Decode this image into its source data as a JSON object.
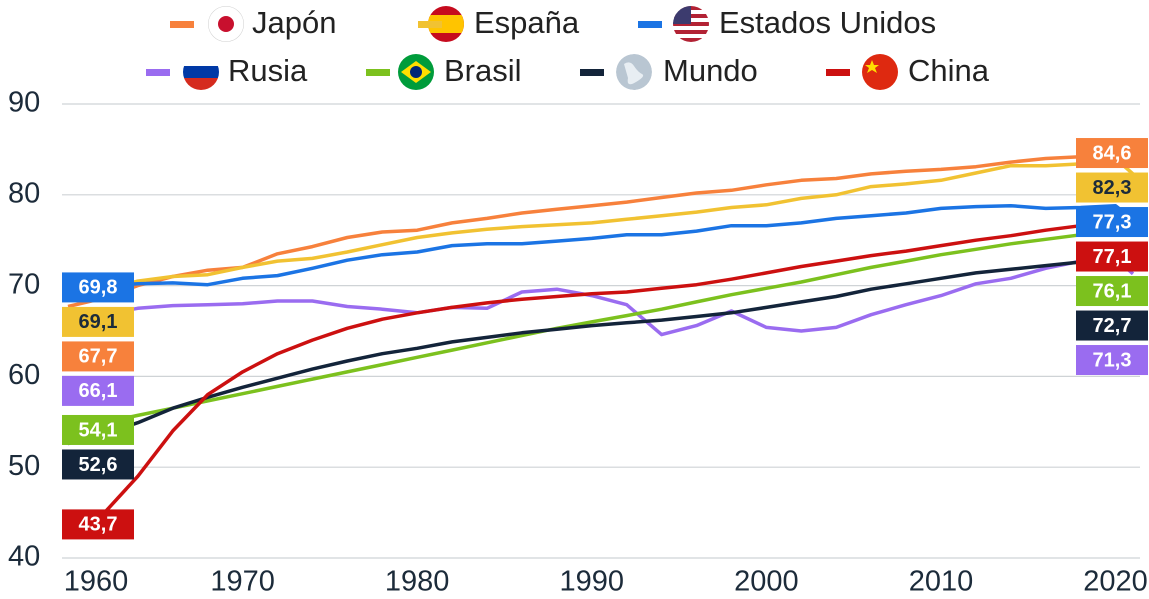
{
  "chart_data": {
    "type": "line",
    "x": [
      1960,
      1962,
      1964,
      1966,
      1968,
      1970,
      1972,
      1974,
      1976,
      1978,
      1980,
      1982,
      1984,
      1986,
      1988,
      1990,
      1992,
      1994,
      1996,
      1998,
      2000,
      2002,
      2004,
      2006,
      2008,
      2010,
      2012,
      2014,
      2016,
      2018,
      2020,
      2021
    ],
    "xlim": [
      1960,
      2021
    ],
    "xticks": [
      1960,
      1970,
      1980,
      1990,
      2000,
      2010,
      2020
    ],
    "ylim": [
      40,
      92
    ],
    "yticks": [
      40,
      50,
      60,
      70,
      80,
      90
    ],
    "grid": true,
    "series": [
      {
        "name": "Japón",
        "color": "#f7813c",
        "values": [
          67.7,
          68.6,
          70.0,
          71.0,
          71.7,
          72.0,
          73.5,
          74.3,
          75.3,
          75.9,
          76.1,
          76.9,
          77.4,
          78.0,
          78.4,
          78.8,
          79.2,
          79.7,
          80.2,
          80.5,
          81.1,
          81.6,
          81.8,
          82.3,
          82.6,
          82.8,
          83.1,
          83.6,
          84.0,
          84.2,
          84.4,
          84.6
        ],
        "value_labels": [
          "67,7",
          null,
          null,
          null,
          null,
          null,
          null,
          null,
          null,
          null,
          null,
          null,
          null,
          null,
          null,
          null,
          null,
          null,
          null,
          null,
          null,
          null,
          null,
          null,
          null,
          null,
          null,
          null,
          null,
          null,
          null,
          "84,6"
        ]
      },
      {
        "name": "España",
        "color": "#f1c232",
        "values": [
          69.1,
          69.5,
          70.5,
          71.0,
          71.2,
          72.0,
          72.7,
          73.0,
          73.7,
          74.5,
          75.3,
          75.8,
          76.2,
          76.5,
          76.7,
          76.9,
          77.3,
          77.7,
          78.1,
          78.6,
          78.9,
          79.6,
          80.0,
          80.9,
          81.2,
          81.6,
          82.4,
          83.2,
          83.2,
          83.4,
          84.0,
          82.3
        ],
        "value_labels": [
          "69,1",
          null,
          null,
          null,
          null,
          null,
          null,
          null,
          null,
          null,
          null,
          null,
          null,
          null,
          null,
          null,
          null,
          null,
          null,
          null,
          null,
          null,
          null,
          null,
          null,
          null,
          null,
          null,
          null,
          null,
          null,
          "82,3"
        ]
      },
      {
        "name": "Estados Unidos",
        "color": "#1b74e4",
        "values": [
          69.8,
          70.0,
          70.2,
          70.3,
          70.1,
          70.8,
          71.1,
          71.9,
          72.8,
          73.4,
          73.7,
          74.4,
          74.6,
          74.6,
          74.9,
          75.2,
          75.6,
          75.6,
          76.0,
          76.6,
          76.6,
          76.9,
          77.4,
          77.7,
          78.0,
          78.5,
          78.7,
          78.8,
          78.5,
          78.6,
          78.8,
          77.3
        ],
        "value_labels": [
          "69,8",
          null,
          null,
          null,
          null,
          null,
          null,
          null,
          null,
          null,
          null,
          null,
          null,
          null,
          null,
          null,
          null,
          null,
          null,
          null,
          null,
          null,
          null,
          null,
          null,
          null,
          null,
          null,
          null,
          null,
          null,
          "77,3"
        ]
      },
      {
        "name": "Rusia",
        "color": "#9a6cf0",
        "values": [
          66.1,
          66.8,
          67.5,
          67.8,
          67.9,
          68.0,
          68.3,
          68.3,
          67.7,
          67.4,
          67.0,
          67.6,
          67.5,
          69.3,
          69.6,
          68.9,
          67.9,
          64.6,
          65.6,
          67.2,
          65.4,
          65.0,
          65.4,
          66.8,
          67.9,
          68.9,
          70.2,
          70.8,
          71.9,
          72.7,
          73.0,
          71.3
        ],
        "value_labels": [
          "66,1",
          null,
          null,
          null,
          null,
          null,
          null,
          null,
          null,
          null,
          null,
          null,
          null,
          null,
          null,
          null,
          null,
          null,
          null,
          null,
          null,
          null,
          null,
          null,
          null,
          null,
          null,
          null,
          null,
          null,
          null,
          "71,3"
        ]
      },
      {
        "name": "Brasil",
        "color": "#7cc11e",
        "values": [
          54.1,
          54.9,
          55.7,
          56.5,
          57.3,
          58.1,
          58.9,
          59.7,
          60.5,
          61.3,
          62.1,
          62.9,
          63.7,
          64.5,
          65.3,
          66.0,
          66.7,
          67.4,
          68.2,
          69.0,
          69.7,
          70.4,
          71.2,
          72.0,
          72.7,
          73.4,
          74.0,
          74.6,
          75.1,
          75.6,
          75.9,
          76.1
        ],
        "value_labels": [
          "54,1",
          null,
          null,
          null,
          null,
          null,
          null,
          null,
          null,
          null,
          null,
          null,
          null,
          null,
          null,
          null,
          null,
          null,
          null,
          null,
          null,
          null,
          null,
          null,
          null,
          null,
          null,
          null,
          null,
          null,
          null,
          "76,1"
        ]
      },
      {
        "name": "Mundo",
        "color": "#13243a",
        "values": [
          52.6,
          53.6,
          54.9,
          56.5,
          57.7,
          58.8,
          59.8,
          60.8,
          61.7,
          62.5,
          63.1,
          63.8,
          64.3,
          64.8,
          65.2,
          65.6,
          65.9,
          66.2,
          66.6,
          67.0,
          67.6,
          68.2,
          68.8,
          69.6,
          70.2,
          70.8,
          71.4,
          71.8,
          72.2,
          72.6,
          72.8,
          72.7
        ],
        "value_labels": [
          "52,6",
          null,
          null,
          null,
          null,
          null,
          null,
          null,
          null,
          null,
          null,
          null,
          null,
          null,
          null,
          null,
          null,
          null,
          null,
          null,
          null,
          null,
          null,
          null,
          null,
          null,
          null,
          null,
          null,
          null,
          null,
          "72,7"
        ]
      },
      {
        "name": "China",
        "color": "#cc1010",
        "values": [
          43.7,
          44.8,
          49.0,
          54.0,
          58.0,
          60.5,
          62.5,
          64.0,
          65.3,
          66.3,
          67.0,
          67.6,
          68.1,
          68.5,
          68.8,
          69.1,
          69.3,
          69.7,
          70.1,
          70.7,
          71.4,
          72.1,
          72.7,
          73.3,
          73.8,
          74.4,
          75.0,
          75.5,
          76.1,
          76.6,
          76.9,
          77.1
        ],
        "value_labels": [
          "43,7",
          null,
          null,
          null,
          null,
          null,
          null,
          null,
          null,
          null,
          null,
          null,
          null,
          null,
          null,
          null,
          null,
          null,
          null,
          null,
          null,
          null,
          null,
          null,
          null,
          null,
          null,
          null,
          null,
          null,
          null,
          "77,1"
        ]
      }
    ]
  }
}
